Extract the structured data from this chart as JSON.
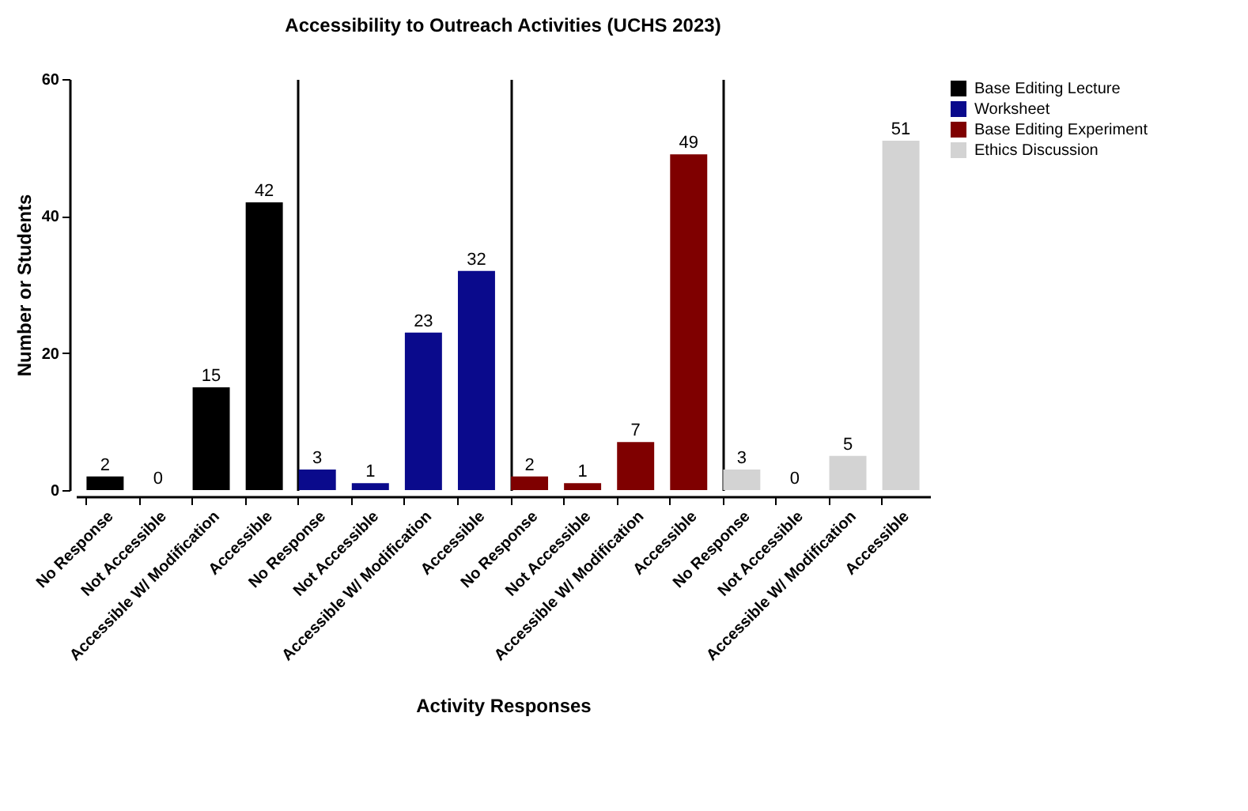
{
  "chart_data": {
    "type": "bar",
    "title": "Accessibility to Outreach Activities (UCHS 2023)",
    "xlabel": "Activity Responses",
    "ylabel": "Number or Students",
    "categories": [
      "No Response",
      "Not Accessible",
      "Accessible W/ Modification",
      "Accessible",
      "No Response",
      "Not Accessible",
      "Accessible W/ Modification",
      "Accessible",
      "No Response",
      "Not Accessible",
      "Accessible W/ Modification",
      "Accessible",
      "No Response",
      "Not Accessible",
      "Accessible W/ Modification",
      "Accessible"
    ],
    "series": [
      {
        "name": "Base Editing Lecture",
        "color": "#000000",
        "values": [
          2,
          0,
          15,
          42,
          null,
          null,
          null,
          null,
          null,
          null,
          null,
          null,
          null,
          null,
          null,
          null
        ]
      },
      {
        "name": "Worksheet",
        "color": "#0a0a8c",
        "values": [
          null,
          null,
          null,
          null,
          3,
          1,
          23,
          32,
          null,
          null,
          null,
          null,
          null,
          null,
          null,
          null
        ]
      },
      {
        "name": "Base Editing Experiment",
        "color": "#7f0000",
        "values": [
          null,
          null,
          null,
          null,
          null,
          null,
          null,
          null,
          2,
          1,
          7,
          49,
          null,
          null,
          null,
          null
        ]
      },
      {
        "name": "Ethics Discussion",
        "color": "#d3d3d3",
        "values": [
          null,
          null,
          null,
          null,
          null,
          null,
          null,
          null,
          null,
          null,
          null,
          null,
          3,
          0,
          5,
          51
        ]
      }
    ],
    "ylim": [
      0,
      60
    ],
    "yticks": [
      0,
      20,
      40,
      60
    ],
    "data_labels": true,
    "legend": "top right"
  }
}
